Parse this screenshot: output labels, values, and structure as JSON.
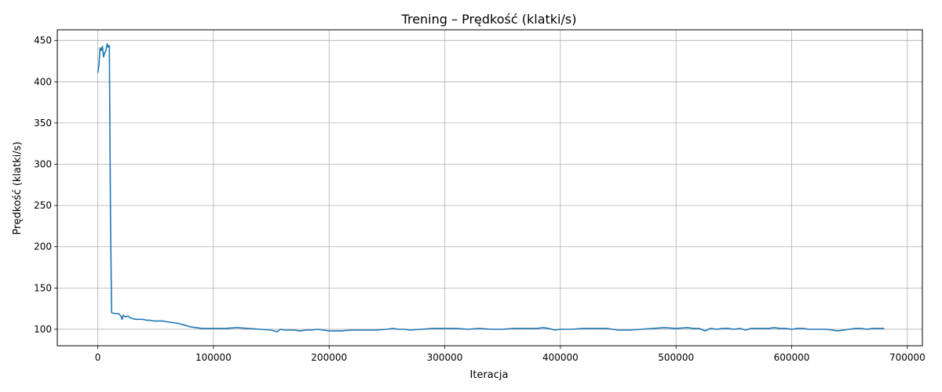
{
  "chart_data": {
    "type": "line",
    "title": "Trening – Prędkość (klatki/s)",
    "xlabel": "Iteracja",
    "ylabel": "Prędkość (klatki/s)",
    "xlim": [
      -35000,
      713000
    ],
    "ylim": [
      80,
      463
    ],
    "xticks": [
      0,
      100000,
      200000,
      300000,
      400000,
      500000,
      600000,
      700000
    ],
    "xtick_labels": [
      "0",
      "100000",
      "200000",
      "300000",
      "400000",
      "500000",
      "600000",
      "700000"
    ],
    "yticks": [
      100,
      150,
      200,
      250,
      300,
      350,
      400,
      450
    ],
    "ytick_labels": [
      "100",
      "150",
      "200",
      "250",
      "300",
      "350",
      "400",
      "450"
    ],
    "grid": true,
    "line_color": "#1f77b4",
    "series": [
      {
        "x": [
          0,
          1000,
          2000,
          3000,
          4000,
          5000,
          6000,
          7000,
          8000,
          9000,
          10000,
          11000,
          12000,
          15000,
          18000,
          20000,
          21000,
          22000,
          24000,
          26000,
          28000,
          30000,
          33000,
          36000,
          39000,
          42000,
          45000,
          48000,
          52000,
          56000,
          60000,
          65000,
          70000,
          75000,
          80000,
          85000,
          90000,
          95000,
          100000,
          105000,
          110000,
          120000,
          130000,
          140000,
          150000,
          155000,
          158000,
          162000,
          166000,
          170000,
          175000,
          180000,
          185000,
          190000,
          195000,
          200000,
          210000,
          220000,
          230000,
          240000,
          250000,
          255000,
          260000,
          265000,
          270000,
          280000,
          290000,
          300000,
          310000,
          320000,
          330000,
          340000,
          350000,
          360000,
          370000,
          380000,
          385000,
          390000,
          395000,
          400000,
          410000,
          420000,
          430000,
          440000,
          445000,
          450000,
          460000,
          470000,
          480000,
          490000,
          500000,
          510000,
          515000,
          520000,
          525000,
          530000,
          535000,
          540000,
          545000,
          550000,
          555000,
          560000,
          565000,
          570000,
          575000,
          580000,
          585000,
          590000,
          595000,
          600000,
          605000,
          610000,
          615000,
          620000,
          625000,
          630000,
          635000,
          640000,
          645000,
          650000,
          655000,
          660000,
          665000,
          670000,
          675000,
          680000
        ],
        "y": [
          411,
          420,
          441,
          438,
          443,
          430,
          435,
          438,
          446,
          442,
          444,
          230,
          120,
          119,
          119,
          116,
          112,
          117,
          115,
          116,
          114,
          113,
          112,
          112,
          112,
          111,
          111,
          110,
          110,
          110,
          109,
          108,
          107,
          105,
          103,
          102,
          101,
          101,
          101,
          101,
          101,
          102,
          101,
          100,
          99,
          97,
          100,
          99,
          99,
          99,
          98,
          99,
          99,
          100,
          99,
          98,
          98,
          99,
          99,
          99,
          100,
          101,
          100,
          100,
          99,
          100,
          101,
          101,
          101,
          100,
          101,
          100,
          100,
          101,
          101,
          101,
          102,
          101,
          99,
          100,
          100,
          101,
          101,
          101,
          100,
          99,
          99,
          100,
          101,
          102,
          101,
          102,
          101,
          101,
          98,
          101,
          100,
          101,
          101,
          100,
          101,
          99,
          101,
          101,
          101,
          101,
          102,
          101,
          101,
          100,
          101,
          101,
          100,
          100,
          100,
          100,
          99,
          98,
          99,
          100,
          101,
          101,
          100,
          101,
          101,
          101
        ]
      }
    ]
  }
}
